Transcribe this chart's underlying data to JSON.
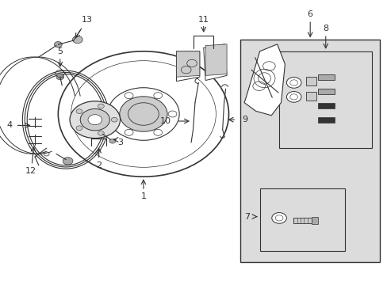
{
  "bg_color": "#ffffff",
  "line_color": "#333333",
  "box_bg": "#dcdcdc"
}
